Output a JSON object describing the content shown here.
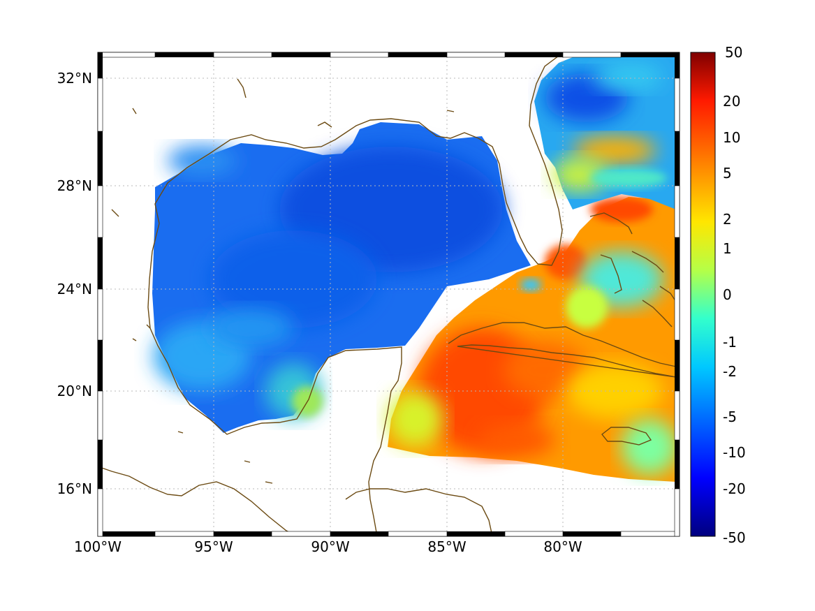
{
  "map": {
    "lon_range": [
      -100,
      -75
    ],
    "lat_range": [
      14.2,
      33
    ],
    "x_ticks": [
      {
        "lon": -100,
        "label": "100°W"
      },
      {
        "lon": -95,
        "label": "95°W"
      },
      {
        "lon": -90,
        "label": "90°W"
      },
      {
        "lon": -85,
        "label": "85°W"
      },
      {
        "lon": -80,
        "label": "80°W"
      }
    ],
    "y_ticks": [
      {
        "lat": 32,
        "label": "32°N"
      },
      {
        "lat": 28,
        "label": "28°N"
      },
      {
        "lat": 24,
        "label": "24°N"
      },
      {
        "lat": 20,
        "label": "20°N"
      },
      {
        "lat": 16,
        "label": "16°N"
      }
    ],
    "grid": "dotted",
    "coastline_color": "#6b4a12"
  },
  "colorbar": {
    "ticks": [
      "50",
      "20",
      "10",
      "5",
      "2",
      "1",
      "0",
      "-1",
      "-2",
      "-5",
      "-10",
      "-20",
      "-50"
    ],
    "colormap": "jet",
    "scale": "symmetric-log"
  },
  "chart_data": {
    "type": "heatmap",
    "colorbar_range": [
      -50,
      50
    ],
    "regions": [
      {
        "name": "Gulf of Mexico interior",
        "approx_value": -8
      },
      {
        "name": "NE Gulf / Florida shelf",
        "approx_value": -12
      },
      {
        "name": "Western Gulf shelf",
        "approx_value": -3
      },
      {
        "name": "Caribbean south of Cuba",
        "approx_value": 8
      },
      {
        "name": "Florida Straits",
        "approx_value": 6
      },
      {
        "name": "Atlantic east of Florida",
        "approx_value": -4
      },
      {
        "name": "Bahamas banks",
        "approx_value": 0
      },
      {
        "name": "Atlantic near 29N 78W",
        "approx_value": 4
      }
    ]
  }
}
